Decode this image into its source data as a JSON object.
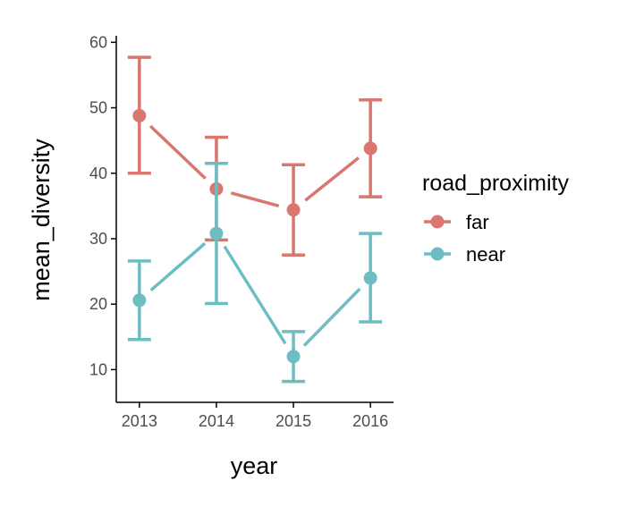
{
  "chart_data": {
    "type": "line",
    "x": [
      2013,
      2014,
      2015,
      2016
    ],
    "xlabel": "year",
    "ylabel": "mean_diversity",
    "ylim": [
      5,
      61
    ],
    "yticks": [
      10,
      20,
      30,
      40,
      50,
      60
    ],
    "grid": false,
    "error_bars": true,
    "legend": {
      "title": "road_proximity",
      "position": "right"
    },
    "series": [
      {
        "name": "far",
        "color": "#D8766F",
        "values": [
          48.8,
          37.6,
          34.4,
          43.8
        ],
        "error_low": [
          40.0,
          29.8,
          27.5,
          36.4
        ],
        "error_high": [
          57.7,
          45.5,
          41.3,
          51.2
        ]
      },
      {
        "name": "near",
        "color": "#6DBEC3",
        "values": [
          20.6,
          30.8,
          12.0,
          24.0
        ],
        "error_low": [
          14.6,
          20.1,
          8.2,
          17.3
        ],
        "error_high": [
          26.6,
          41.5,
          15.8,
          30.8
        ]
      }
    ]
  }
}
